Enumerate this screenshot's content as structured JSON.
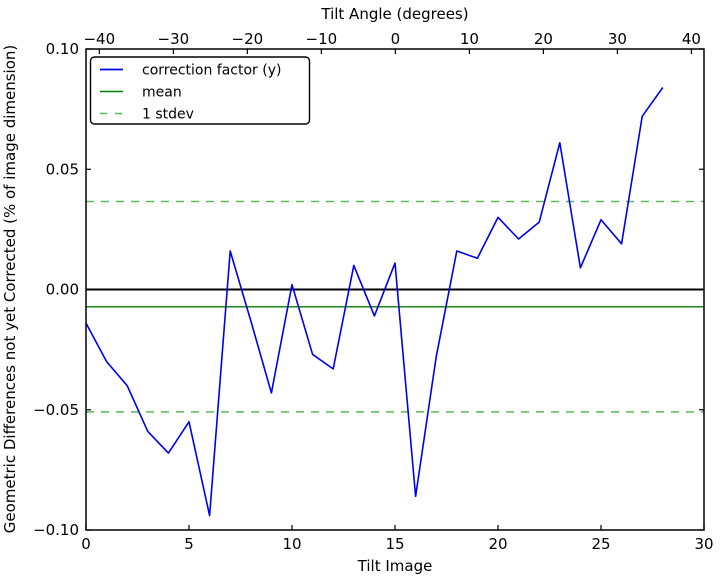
{
  "chart_data": {
    "type": "line",
    "title_top": "Tilt Angle (degrees)",
    "xlabel": "Tilt Image",
    "ylabel": "Geometric Differences not yet Corrected (% of image dimension)",
    "xlim": [
      0,
      30
    ],
    "ylim": [
      -0.1,
      0.1
    ],
    "top_axis_range": [
      -41.8,
      41.7
    ],
    "grid": false,
    "legend_position": "upper left",
    "x": [
      0,
      1,
      2,
      3,
      4,
      5,
      6,
      7,
      8,
      9,
      10,
      11,
      12,
      13,
      14,
      15,
      16,
      17,
      18,
      19,
      20,
      21,
      22,
      23,
      24,
      25,
      26,
      27,
      28
    ],
    "series": [
      {
        "name": "correction factor (y)",
        "style": "solid",
        "values": [
          -0.014,
          -0.03,
          -0.04,
          -0.059,
          -0.068,
          -0.055,
          -0.094,
          0.016,
          -0.013,
          -0.043,
          0.002,
          -0.027,
          -0.033,
          0.01,
          -0.011,
          0.011,
          -0.086,
          -0.028,
          0.016,
          0.013,
          0.03,
          0.021,
          0.028,
          0.061,
          0.009,
          0.029,
          0.019,
          0.072,
          0.084
        ]
      }
    ],
    "mean_line": -0.0072,
    "stdev_lines": [
      0.0366,
      -0.0509
    ],
    "zero_line": 0.0,
    "x_ticks": [
      "0",
      "5",
      "10",
      "15",
      "20",
      "25",
      "30"
    ],
    "x_tick_values": [
      0,
      5,
      10,
      15,
      20,
      25,
      30
    ],
    "y_ticks": [
      "0.10",
      "0.05",
      "0.00",
      "−0.05",
      "−0.10"
    ],
    "y_tick_values": [
      0.1,
      0.05,
      0.0,
      -0.05,
      -0.1
    ],
    "top_ticks": [
      "−40",
      "−30",
      "−20",
      "−10",
      "0",
      "10",
      "20",
      "30",
      "40"
    ],
    "top_tick_values": [
      -40,
      -30,
      -20,
      -10,
      0,
      10,
      20,
      30,
      40
    ],
    "colors": {
      "series": "#0000f0",
      "mean": "#007f00",
      "stdev": "#5cb85c",
      "zero": "#000000",
      "spine": "#000000",
      "background": "#ffffff"
    }
  },
  "legend": {
    "entries": [
      {
        "label": "correction factor (y)"
      },
      {
        "label": "mean"
      },
      {
        "label": "1 stdev"
      }
    ]
  }
}
